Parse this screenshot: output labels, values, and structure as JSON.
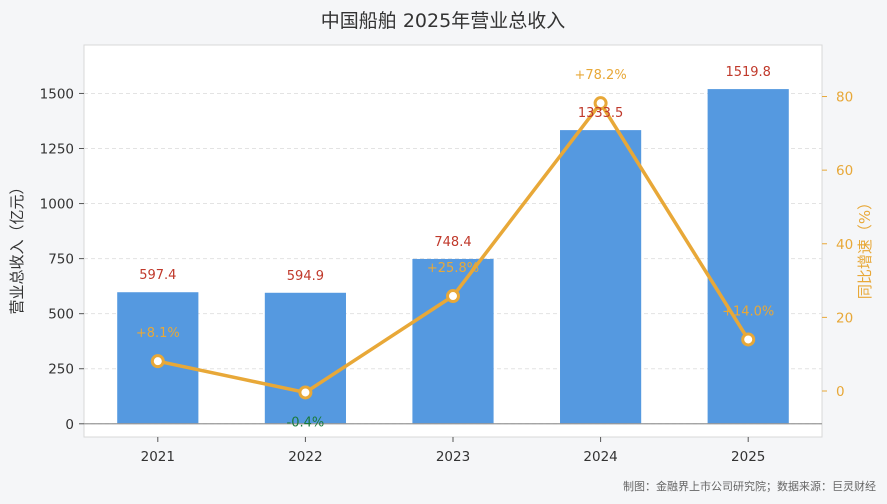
{
  "chart_data": {
    "type": "bar+line",
    "title": "中国船舶 2025年营业总收入",
    "categories": [
      "2021",
      "2022",
      "2023",
      "2024",
      "2025"
    ],
    "series": [
      {
        "type": "bar",
        "values": [
          597.4,
          594.9,
          748.4,
          1333.5,
          1519.8
        ],
        "labels": [
          "597.4",
          "594.9",
          "748.4",
          "1333.5",
          "1519.8"
        ],
        "axis": "left",
        "color": "#5599e0"
      },
      {
        "type": "line",
        "values": [
          8.1,
          -0.4,
          25.8,
          78.2,
          14.0
        ],
        "labels": [
          "+8.1%",
          "-0.4%",
          "+25.8%",
          "+78.2%",
          "+14.0%"
        ],
        "axis": "right",
        "color": "#e8a838"
      }
    ],
    "ylabel_left": "营业总收入（亿元）",
    "ylabel_right": "同比增速（%）",
    "ylim_left": [
      -60,
      1720
    ],
    "ylim_right": [
      -12.5,
      94
    ],
    "yticks_left": [
      0,
      250,
      500,
      750,
      1000,
      1250,
      1500
    ],
    "yticks_right": [
      0,
      20,
      40,
      60,
      80
    ],
    "grid": true,
    "source": "制图：金融界上市公司研究院；数据来源：巨灵财经",
    "colors": {
      "bar": "#5599e0",
      "line": "#e8a838",
      "value_label": "#c0392b",
      "negative_pct": "#1a7a3a"
    }
  }
}
